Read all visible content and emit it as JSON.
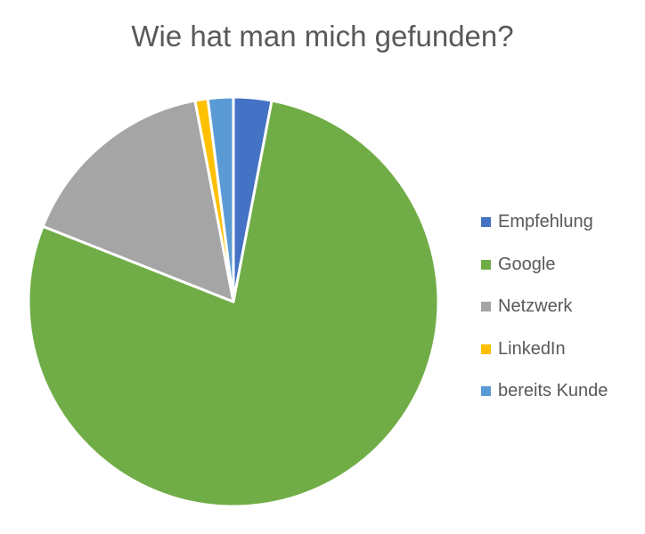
{
  "chart_data": {
    "type": "pie",
    "title": "Wie hat man mich gefunden?",
    "categories": [
      "Empfehlung",
      "Google",
      "Netzwerk",
      "LinkedIn",
      "bereits Kunde"
    ],
    "values": [
      3,
      78,
      16,
      1,
      2
    ],
    "colors": [
      "#4472C4",
      "#70AD47",
      "#A5A5A5",
      "#FFC000",
      "#5B9BD5"
    ],
    "legend_position": "right",
    "start_angle": "top, clockwise"
  }
}
